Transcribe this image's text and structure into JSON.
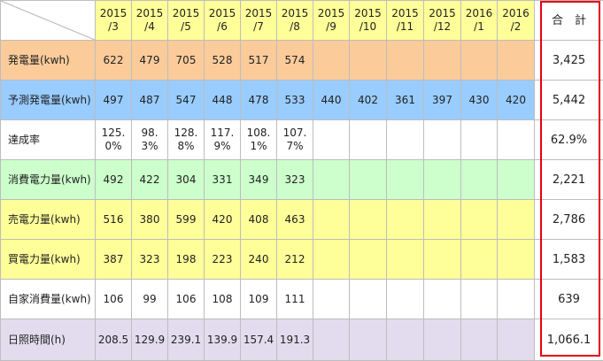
{
  "colors": {
    "header": "#ffff99",
    "orange": "#fbcb9a",
    "blue": "#99ccff",
    "white": "#ffffff",
    "green": "#ccffcc",
    "yellow": "#ffff99",
    "purple": "#e2dcee",
    "border": "#bdbdbd",
    "highlight": "#e60012"
  },
  "header": {
    "months": [
      "2015\n/3",
      "2015\n/4",
      "2015\n/5",
      "2015\n/6",
      "2015\n/7",
      "2015\n/8",
      "2015\n/9",
      "2015\n/10",
      "2015\n/11",
      "2015\n/12",
      "2016\n/1",
      "2016\n/2"
    ],
    "total": "合　計"
  },
  "rows": [
    {
      "label": "発電量(kwh)",
      "color": "orange",
      "values": [
        "622",
        "479",
        "705",
        "528",
        "517",
        "574",
        "",
        "",
        "",
        "",
        "",
        ""
      ],
      "total": "3,425"
    },
    {
      "label": "予測発電量(kwh)",
      "color": "blue",
      "values": [
        "497",
        "487",
        "547",
        "448",
        "478",
        "533",
        "440",
        "402",
        "361",
        "397",
        "430",
        "420"
      ],
      "total": "5,442"
    },
    {
      "label": "達成率",
      "color": "white",
      "values": [
        "125.\n0%",
        "98.\n3%",
        "128.\n8%",
        "117.\n9%",
        "108.\n1%",
        "107.\n7%",
        "",
        "",
        "",
        "",
        "",
        ""
      ],
      "total": "62.9%"
    },
    {
      "label": "消費電力量(kwh)",
      "color": "green",
      "values": [
        "492",
        "422",
        "304",
        "331",
        "349",
        "323",
        "",
        "",
        "",
        "",
        "",
        ""
      ],
      "total": "2,221"
    },
    {
      "label": "売電力量(kwh)",
      "color": "yellow",
      "values": [
        "516",
        "380",
        "599",
        "420",
        "408",
        "463",
        "",
        "",
        "",
        "",
        "",
        ""
      ],
      "total": "2,786"
    },
    {
      "label": "買電力量(kwh)",
      "color": "yellow",
      "values": [
        "387",
        "323",
        "198",
        "223",
        "240",
        "212",
        "",
        "",
        "",
        "",
        "",
        ""
      ],
      "total": "1,583"
    },
    {
      "label": "自家消費量(kwh)",
      "color": "white",
      "values": [
        "106",
        "99",
        "106",
        "108",
        "109",
        "111",
        "",
        "",
        "",
        "",
        "",
        ""
      ],
      "total": "639"
    },
    {
      "label": "日照時間(h)",
      "color": "purple",
      "values": [
        "208.5",
        "129.9",
        "239.1",
        "139.9",
        "157.4",
        "191.3",
        "",
        "",
        "",
        "",
        "",
        ""
      ],
      "total": "1,066.1"
    }
  ]
}
